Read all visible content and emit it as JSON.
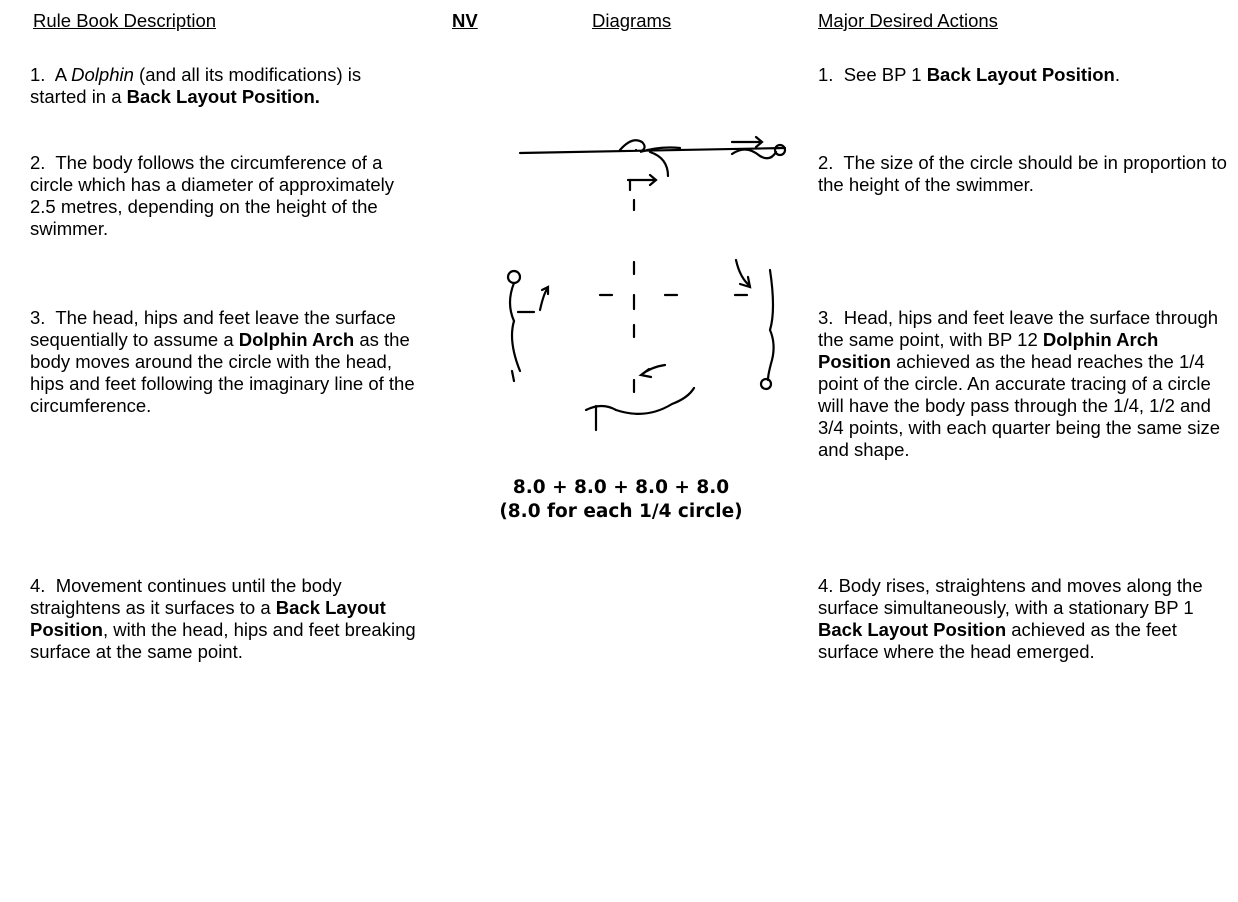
{
  "header": {
    "columns": [
      "Rule Book Description",
      "NV",
      "Diagrams",
      "Major Desired Actions"
    ]
  },
  "rows": [
    {
      "left": [
        "1.  A ",
        {
          "i": "Dolphin"
        },
        " (and all its modifications) is started in a ",
        {
          "b": "Back Layout Position."
        }
      ],
      "right": [
        "1.  See BP 1 ",
        {
          "b": "Back Layout Position"
        },
        "."
      ]
    },
    {
      "left": [
        "2.  The body follows the circumference of a circle which has a diameter of approximately 2.5 metres, depending on the height of the swimmer."
      ],
      "right": [
        "2.  The size of the circle should be in proportion to the height of the swimmer."
      ]
    },
    {
      "left": [
        "3.  The head, hips and feet leave the surface sequentially to assume a ",
        {
          "b": "Dolphin Arch"
        },
        " as the body moves around the circle with the head, hips and feet following the imaginary line of the circumference."
      ],
      "right": [
        "3.  Head, hips and feet leave the surface through the same point, with BP 12 ",
        {
          "b": "Dolphin Arch Position"
        },
        " achieved as the head reaches the 1/4 point of the circle. An accurate tracing of a circle will have the body pass through the 1/4, 1/2 and 3/4 points, with each quarter being the same size and shape."
      ]
    },
    {
      "left": [
        "4.  Movement continues until the body straightens as it surfaces to a ",
        {
          "b": "Back Layout Position"
        },
        ", with the head, hips and feet breaking surface at the same point."
      ],
      "right": [
        "4. Body rises, straightens and moves along the surface simultaneously, with a stationary BP 1 ",
        {
          "b": "Back Layout Position"
        },
        " achieved as the feet surface where the head emerged."
      ]
    }
  ],
  "diagram": {
    "caption": [
      "8.0 + 8.0 + 8.0 + 8.0",
      "(8.0 for each 1/4 circle)"
    ]
  }
}
